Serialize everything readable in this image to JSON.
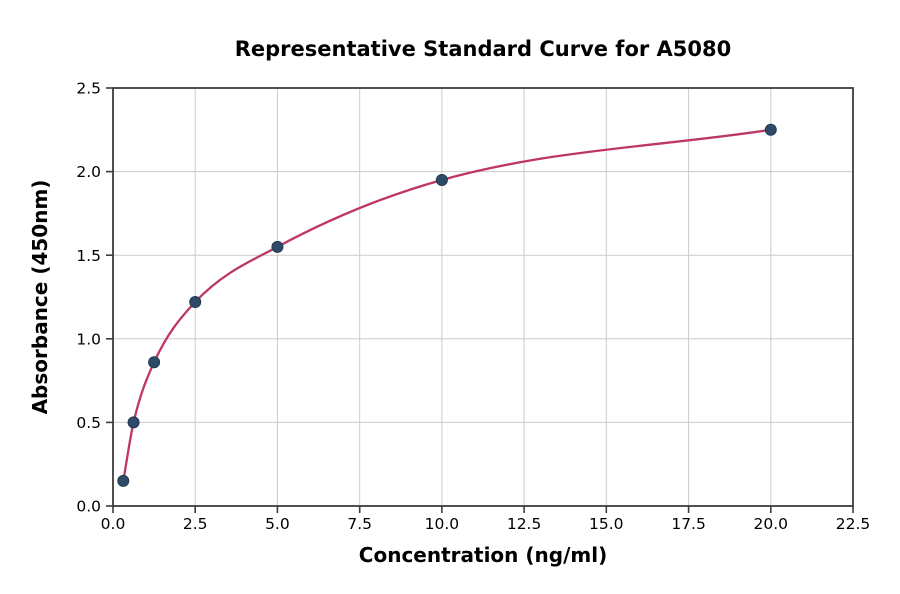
{
  "chart_data": {
    "type": "scatter",
    "title": "Representative Standard Curve for A5080",
    "xlabel": "Concentration (ng/ml)",
    "ylabel": "Absorbance (450nm)",
    "x": [
      0.313,
      0.625,
      1.25,
      2.5,
      5,
      10,
      20
    ],
    "y": [
      0.15,
      0.5,
      0.86,
      1.22,
      1.55,
      1.95,
      2.25
    ],
    "curve_description": "smooth fitted standard curve passing through all data points, drawn from first point (0.313, 0.15) to last point (20, 2.25)",
    "xlim": [
      0,
      22.5
    ],
    "ylim": [
      0,
      2.5
    ],
    "xticks": [
      0,
      2.5,
      5,
      7.5,
      10,
      12.5,
      15,
      17.5,
      20,
      22.5
    ],
    "yticks": [
      0,
      0.5,
      1,
      1.5,
      2,
      2.5
    ],
    "xtick_labels": [
      "0.0",
      "2.5",
      "5.0",
      "7.5",
      "10.0",
      "12.5",
      "15.0",
      "17.5",
      "20.0",
      "22.5"
    ],
    "ytick_labels": [
      "0.0",
      "0.5",
      "1.0",
      "1.5",
      "2.0",
      "2.5"
    ],
    "grid": true,
    "legend": false,
    "colors": {
      "curve": "#BE3760",
      "point": "#2F4A68",
      "point_edge": "#22384F",
      "grid": "#CCCCCC",
      "axis": "#3C3C3C",
      "text": "#000000"
    }
  }
}
